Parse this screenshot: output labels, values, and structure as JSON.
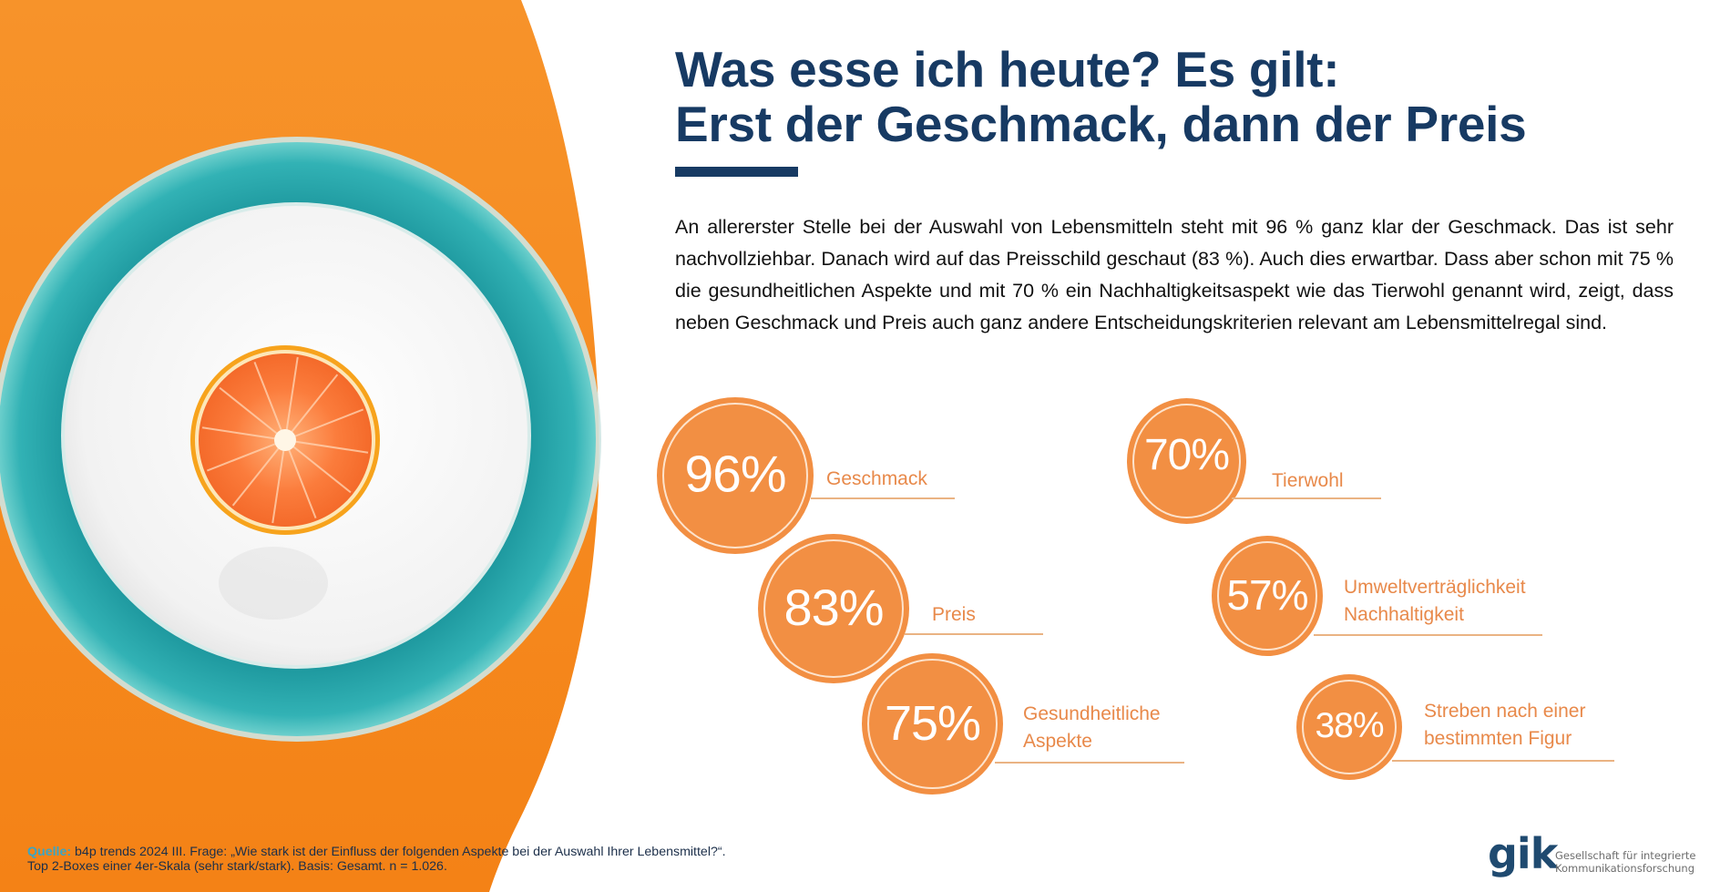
{
  "title": {
    "line1": "Was esse ich heute? Es gilt:",
    "line2": "Erst der Geschmack, dann der Preis"
  },
  "intro": "An allererster Stelle bei der Auswahl von Lebensmitteln steht mit 96 % ganz klar der Geschmack.  Das ist sehr nachvollziehbar. Danach wird auf das Preisschild geschaut (83 %). Auch dies erwartbar. Dass aber schon mit 75 % die gesundheitlichen Aspekte und mit 70 % ein Nachhaltigkeitsaspekt wie das Tierwohl genannt wird, zeigt, dass neben Geschmack und Preis auch ganz andere Entscheidungskriterien relevant am Lebensmittelregal sind.",
  "colors": {
    "brand_navy": "#173a63",
    "stat_orange": "#f28f43",
    "label_orange": "#e8894a",
    "background_orange": "#f68b1f",
    "plate_teal": "#2aa3a8",
    "source_teal": "#3aa5c4"
  },
  "image": {
    "description": "orange-slice-on-teal-plate",
    "icon": "plate-with-orange-illustration"
  },
  "stats": [
    {
      "value": "96%",
      "label_lines": [
        "Geschmack"
      ]
    },
    {
      "value": "83%",
      "label_lines": [
        "Preis"
      ]
    },
    {
      "value": "75%",
      "label_lines": [
        "Gesundheitliche",
        "Aspekte"
      ]
    },
    {
      "value": "70%",
      "label_lines": [
        "Tierwohl"
      ]
    },
    {
      "value": "57%",
      "label_lines": [
        "Umweltverträglichkeit",
        "Nachhaltigkeit"
      ]
    },
    {
      "value": "38%",
      "label_lines": [
        "Streben nach einer",
        "bestimmten Figur"
      ]
    }
  ],
  "source": {
    "label": "Quelle:",
    "line1": "b4p trends 2024 III. Frage: „Wie stark ist der Einfluss der folgenden Aspekte bei der Auswahl Ihrer Lebensmittel?“.",
    "line2": "Top 2-Boxes einer 4er-Skala (sehr stark/stark). Basis: Gesamt. n = 1.026."
  },
  "logo": {
    "mark": "gik",
    "tagline_line1": "Gesellschaft für integrierte",
    "tagline_line2": "Kommunikationsforschung"
  }
}
